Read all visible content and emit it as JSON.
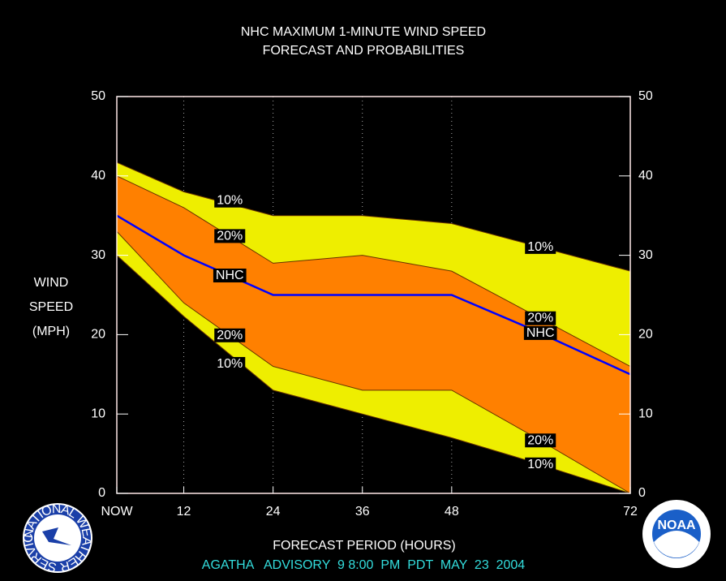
{
  "chart_data": {
    "type": "probability-bands",
    "title": "NHC MAXIMUM 1-MINUTE WIND SPEED",
    "subtitle": "FORECAST AND PROBABILITIES",
    "ylabel": [
      "WIND",
      "SPEED",
      "(MPH)"
    ],
    "xlabel": "FORECAST PERIOD (HOURS)",
    "footer": "AGATHA   ADVISORY  9 8:00  PM  PDT  MAY  23  2004",
    "x": [
      3,
      12,
      24,
      36,
      48,
      58,
      72
    ],
    "xlim": [
      3,
      72
    ],
    "xticks": [
      {
        "value": 3,
        "label": "NOW"
      },
      12,
      24,
      36,
      48,
      72
    ],
    "ylim": [
      0,
      50
    ],
    "yticks": [
      0,
      10,
      20,
      30,
      40,
      50
    ],
    "grid": "x",
    "series": [
      {
        "name": "10%",
        "color": "#eeee00",
        "values": [
          41.7,
          38,
          35,
          35,
          34,
          31.5,
          28
        ]
      },
      {
        "name": "20%",
        "color": "#ff8000",
        "values": [
          40,
          36,
          29,
          30,
          28,
          23,
          16
        ]
      },
      {
        "name": "NHC",
        "color": "#0000ff",
        "values": [
          35,
          30,
          25,
          25,
          25,
          21,
          15
        ]
      },
      {
        "name": "20%",
        "color": "#ff8000",
        "values": [
          33,
          24,
          16,
          13,
          13,
          7.7,
          0
        ]
      },
      {
        "name": "10%",
        "color": "#eeee00",
        "values": [
          30,
          22.3,
          13,
          10,
          7,
          4.2,
          0
        ]
      }
    ]
  },
  "logos": {
    "left": "NATIONAL WEATHER SERVICE",
    "right": "NOAA"
  }
}
